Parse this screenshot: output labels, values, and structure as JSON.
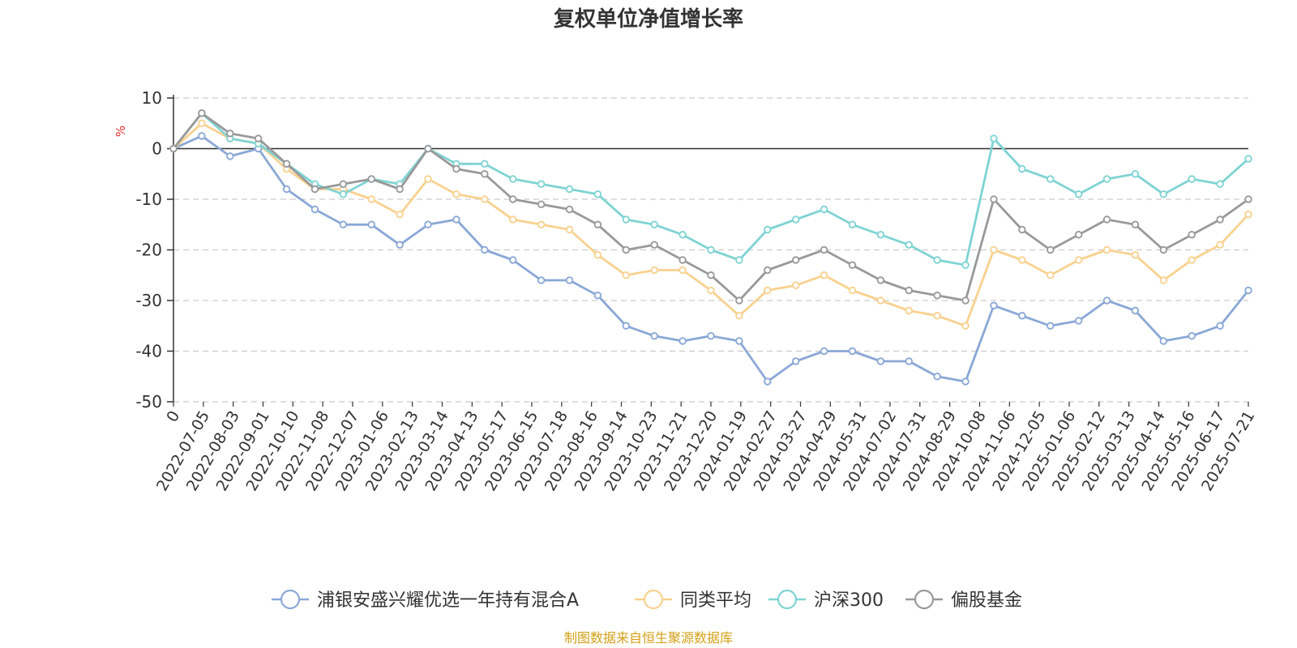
{
  "chart_data": {
    "type": "line",
    "title": "复权单位净值增长率",
    "ylabel": "%",
    "ylim": [
      -50,
      10
    ],
    "y_ticks": [
      10,
      0,
      -10,
      -20,
      -30,
      -40,
      -50
    ],
    "x_ticks": [
      "0",
      "2022-07-05",
      "2022-08-03",
      "2022-09-01",
      "2022-10-10",
      "2022-11-08",
      "2022-12-07",
      "2023-01-06",
      "2023-02-13",
      "2023-03-14",
      "2023-04-13",
      "2023-05-17",
      "2023-06-15",
      "2023-07-18",
      "2023-08-16",
      "2023-09-14",
      "2023-10-23",
      "2023-11-21",
      "2023-12-20",
      "2024-01-19",
      "2024-02-27",
      "2024-03-27",
      "2024-04-29",
      "2024-05-31",
      "2024-07-02",
      "2024-07-31",
      "2024-08-29",
      "2024-10-08",
      "2024-11-06",
      "2024-12-05",
      "2025-01-06",
      "2025-02-12",
      "2025-03-13",
      "2025-04-14",
      "2025-05-16",
      "2025-06-17",
      "2025-07-21"
    ],
    "grid": true,
    "legend_position": "bottom",
    "series": [
      {
        "name": "浦银安盛兴耀优选一年持有混合A",
        "color": "#8aa8d6",
        "values": [
          0,
          2.5,
          -1.5,
          0,
          -8,
          -12,
          -15,
          -15,
          -19,
          -15,
          -14,
          -20,
          -22,
          -26,
          -26,
          -29,
          -35,
          -37,
          -38,
          -37,
          -38,
          -46,
          -42,
          -40,
          -40,
          -42,
          -42,
          -45,
          -46,
          -31,
          -33,
          -35,
          -34,
          -30,
          -32,
          -38,
          -37,
          -35,
          -28
        ]
      },
      {
        "name": "同类平均",
        "color": "#f8d18f",
        "values": [
          0,
          5,
          2,
          1,
          -4,
          -8,
          -8,
          -10,
          -13,
          -6,
          -9,
          -10,
          -14,
          -15,
          -16,
          -21,
          -25,
          -24,
          -24,
          -28,
          -33,
          -28,
          -27,
          -25,
          -28,
          -30,
          -32,
          -33,
          -35,
          -20,
          -22,
          -25,
          -22,
          -20,
          -21,
          -26,
          -22,
          -19,
          -13
        ]
      },
      {
        "name": "沪深300",
        "color": "#7fd3d3",
        "values": [
          0,
          7,
          2,
          1,
          -3,
          -7,
          -9,
          -6,
          -7,
          0,
          -3,
          -3,
          -6,
          -7,
          -8,
          -9,
          -14,
          -15,
          -17,
          -20,
          -22,
          -16,
          -14,
          -12,
          -15,
          -17,
          -19,
          -22,
          -23,
          2,
          -4,
          -6,
          -9,
          -6,
          -5,
          -9,
          -6,
          -7,
          -2
        ]
      },
      {
        "name": "偏股基金",
        "color": "#999999",
        "values": [
          0,
          7,
          3,
          2,
          -3,
          -8,
          -7,
          -6,
          -8,
          0,
          -4,
          -5,
          -10,
          -11,
          -12,
          -15,
          -20,
          -19,
          -22,
          -25,
          -30,
          -24,
          -22,
          -20,
          -23,
          -26,
          -28,
          -29,
          -30,
          -10,
          -16,
          -20,
          -17,
          -14,
          -15,
          -20,
          -17,
          -14,
          -10
        ]
      }
    ]
  },
  "source_label": "制图数据来自恒生聚源数据库",
  "colors": {
    "source": "#d4a017",
    "axis": "#333333",
    "grid": "#cccccc",
    "unit": "#e03030"
  }
}
